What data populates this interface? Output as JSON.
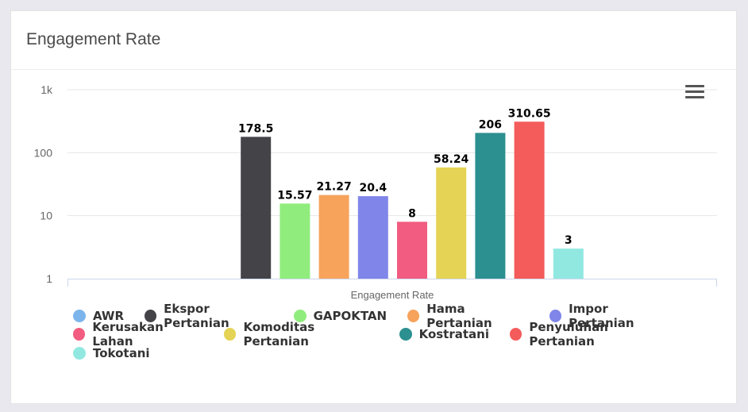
{
  "card": {
    "title": "Engagement Rate"
  },
  "chart_data": {
    "type": "bar",
    "title": "",
    "xlabel": "Engagement Rate",
    "ylabel": "",
    "yscale": "log",
    "ylim": [
      1,
      1000
    ],
    "y_ticks": [
      "1",
      "10",
      "100",
      "1k"
    ],
    "categories": [
      "Engagement Rate"
    ],
    "series": [
      {
        "name": "AWR",
        "value": null,
        "label": "",
        "color": "#7cb5ec"
      },
      {
        "name": "Ekspor Pertanian",
        "value": 178.5,
        "label": "178.5",
        "color": "#434348"
      },
      {
        "name": "GAPOKTAN",
        "value": 15.57,
        "label": "15.57",
        "color": "#90ed7d"
      },
      {
        "name": "Hama Pertanian",
        "value": 21.27,
        "label": "21.27",
        "color": "#f7a35c"
      },
      {
        "name": "Impor Pertanian",
        "value": 20.4,
        "label": "20.4",
        "color": "#8085e9"
      },
      {
        "name": "Kerusakan Lahan",
        "value": 8,
        "label": "8",
        "color": "#f15c80"
      },
      {
        "name": "Komoditas Pertanian",
        "value": 58.24,
        "label": "58.24",
        "color": "#e4d354"
      },
      {
        "name": "Kostratani",
        "value": 206,
        "label": "206",
        "color": "#2b908f"
      },
      {
        "name": "Penyuluhan Pertanian",
        "value": 310.65,
        "label": "310.65",
        "color": "#f45b5b"
      },
      {
        "name": "Tokotani",
        "value": 3,
        "label": "3",
        "color": "#91e8e1"
      }
    ],
    "legend_position": "bottom",
    "grid": true
  },
  "legend_rows": [
    [
      0,
      1,
      2,
      3,
      4
    ],
    [
      5,
      6,
      7,
      8
    ],
    [
      9
    ]
  ],
  "menu_icon": "hamburger-menu-icon"
}
